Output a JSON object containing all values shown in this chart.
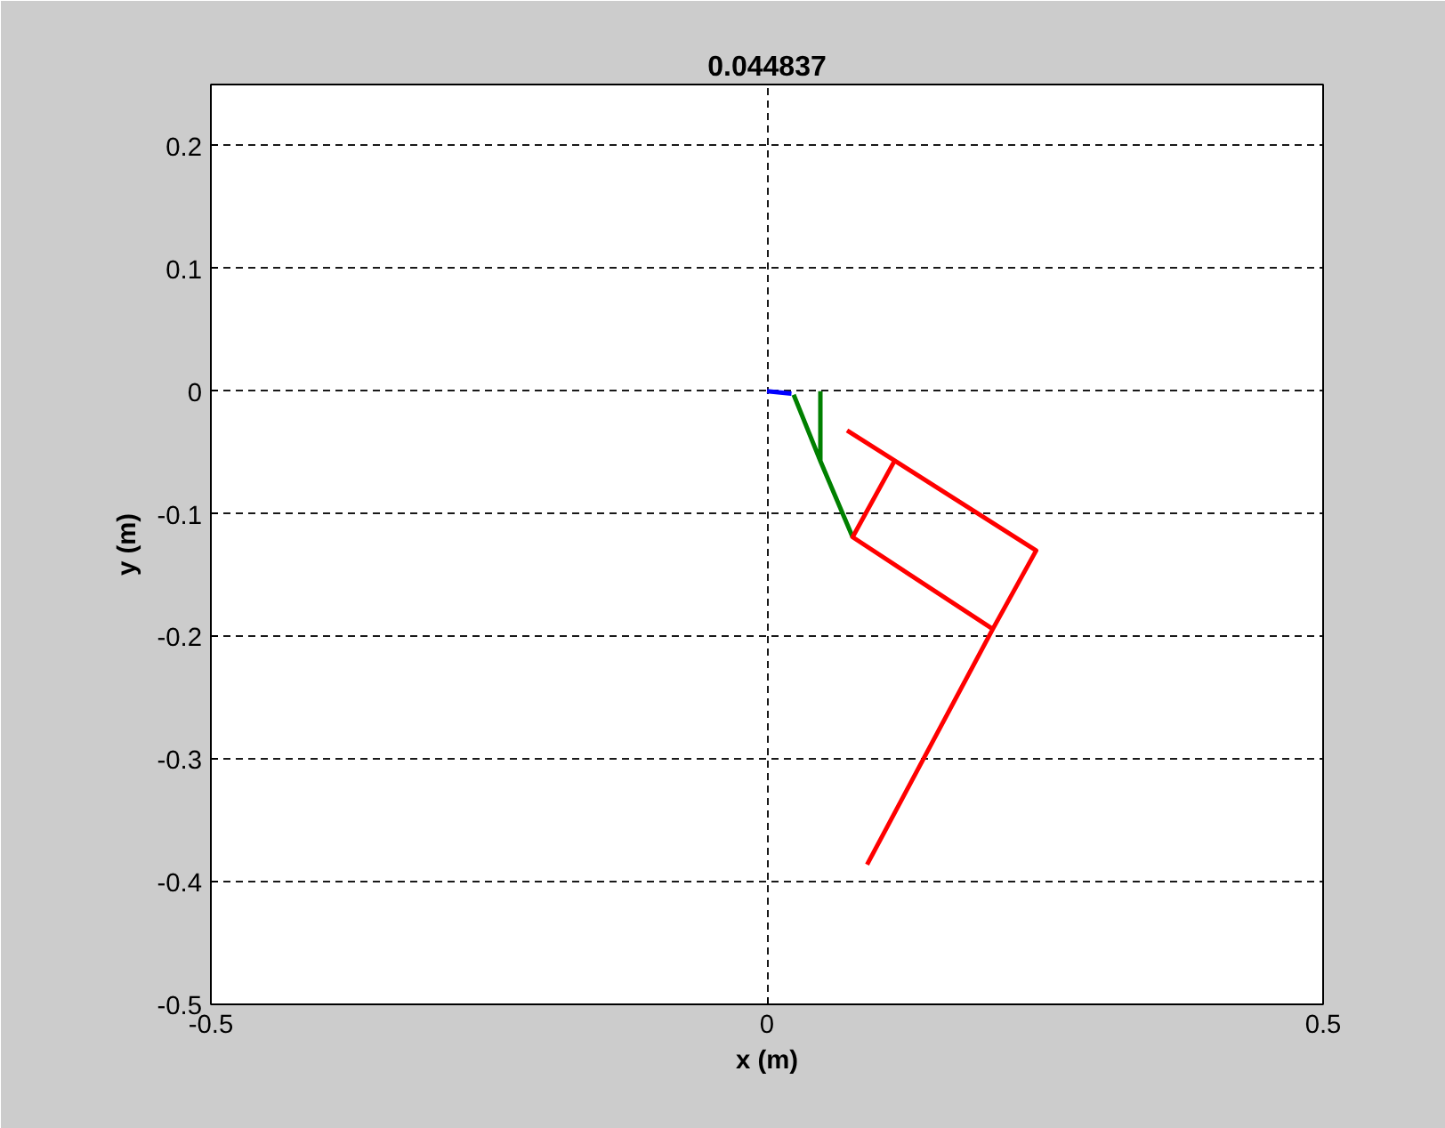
{
  "chart_data": {
    "type": "line",
    "title": "0.044837",
    "xlabel": "x (m)",
    "ylabel": "y (m)",
    "xlim": [
      -0.5,
      0.5
    ],
    "ylim": [
      -0.5,
      0.25
    ],
    "xticks": [
      -0.5,
      0,
      0.5
    ],
    "yticks": [
      -0.5,
      -0.4,
      -0.3,
      -0.2,
      -0.1,
      0,
      0.1,
      0.2
    ],
    "grid": true,
    "line_style": "solid",
    "marker": "none",
    "series": [
      {
        "color": "#0000ff",
        "x": [
          0,
          0.022
        ],
        "values": [
          0,
          -0.002
        ]
      },
      {
        "color": "#008000",
        "x": [
          0.024,
          0.048,
          0.077,
          null,
          0.048,
          0.048
        ],
        "values": [
          -0.003,
          -0.057,
          -0.119,
          null,
          0,
          -0.057
        ]
      },
      {
        "color": "#ff0000",
        "x": [
          0.072,
          0.242,
          0.203,
          0.077,
          0.114,
          null,
          0.203,
          0.09
        ],
        "values": [
          -0.032,
          -0.13,
          -0.194,
          -0.119,
          -0.058,
          null,
          -0.194,
          -0.386
        ]
      }
    ]
  }
}
